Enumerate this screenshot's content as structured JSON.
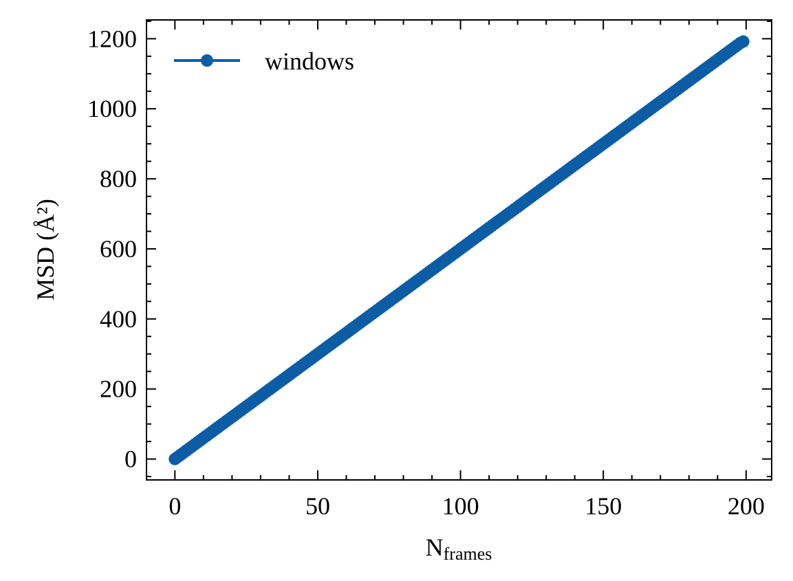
{
  "chart_data": {
    "type": "line",
    "xlabel": "N",
    "xlabel_sub": "frames",
    "ylabel": "MSD (Å²)",
    "x": [
      0,
      1,
      2,
      3,
      4,
      5,
      6,
      7,
      8,
      9,
      10,
      11,
      12,
      13,
      14,
      15,
      16,
      17,
      18,
      19,
      20,
      21,
      22,
      23,
      24,
      25,
      26,
      27,
      28,
      29,
      30,
      31,
      32,
      33,
      34,
      35,
      36,
      37,
      38,
      39,
      40,
      41,
      42,
      43,
      44,
      45,
      46,
      47,
      48,
      49,
      50,
      51,
      52,
      53,
      54,
      55,
      56,
      57,
      58,
      59,
      60,
      61,
      62,
      63,
      64,
      65,
      66,
      67,
      68,
      69,
      70,
      71,
      72,
      73,
      74,
      75,
      76,
      77,
      78,
      79,
      80,
      81,
      82,
      83,
      84,
      85,
      86,
      87,
      88,
      89,
      90,
      91,
      92,
      93,
      94,
      95,
      96,
      97,
      98,
      99,
      100,
      101,
      102,
      103,
      104,
      105,
      106,
      107,
      108,
      109,
      110,
      111,
      112,
      113,
      114,
      115,
      116,
      117,
      118,
      119,
      120,
      121,
      122,
      123,
      124,
      125,
      126,
      127,
      128,
      129,
      130,
      131,
      132,
      133,
      134,
      135,
      136,
      137,
      138,
      139,
      140,
      141,
      142,
      143,
      144,
      145,
      146,
      147,
      148,
      149,
      150,
      151,
      152,
      153,
      154,
      155,
      156,
      157,
      158,
      159,
      160,
      161,
      162,
      163,
      164,
      165,
      166,
      167,
      168,
      169,
      170,
      171,
      172,
      173,
      174,
      175,
      176,
      177,
      178,
      179,
      180,
      181,
      182,
      183,
      184,
      185,
      186,
      187,
      188,
      189,
      190,
      191,
      192,
      193,
      194,
      195,
      196,
      197,
      198,
      199
    ],
    "series": [
      {
        "name": "windows",
        "color": "#0C5DA5",
        "values": [
          0,
          6,
          12,
          18,
          24,
          30,
          36,
          42,
          48,
          54,
          60,
          66,
          72,
          78,
          84,
          90,
          96,
          102,
          108,
          114,
          120,
          126,
          132,
          138,
          144,
          150,
          156,
          162,
          168,
          174,
          180,
          186,
          192,
          198,
          204,
          210,
          216,
          222,
          228,
          234,
          240,
          246,
          252,
          258,
          264,
          270,
          276,
          282,
          288,
          294,
          300,
          306,
          312,
          318,
          324,
          330,
          336,
          342,
          348,
          354,
          360,
          366,
          372,
          378,
          384,
          390,
          396,
          402,
          408,
          414,
          420,
          426,
          432,
          438,
          444,
          450,
          456,
          462,
          468,
          474,
          480,
          486,
          492,
          498,
          504,
          510,
          516,
          522,
          528,
          534,
          540,
          546,
          552,
          558,
          564,
          570,
          576,
          582,
          588,
          594,
          600,
          606,
          612,
          618,
          624,
          630,
          636,
          642,
          648,
          654,
          660,
          666,
          672,
          678,
          684,
          690,
          696,
          702,
          708,
          714,
          720,
          726,
          732,
          738,
          744,
          750,
          756,
          762,
          768,
          774,
          780,
          786,
          792,
          798,
          804,
          810,
          816,
          822,
          828,
          834,
          840,
          846,
          852,
          858,
          864,
          870,
          876,
          882,
          888,
          894,
          900,
          906,
          912,
          918,
          924,
          930,
          936,
          942,
          948,
          954,
          960,
          966,
          972,
          978,
          984,
          990,
          996,
          1002,
          1008,
          1014,
          1020,
          1026,
          1032,
          1038,
          1044,
          1050,
          1056,
          1062,
          1068,
          1074,
          1080,
          1086,
          1092,
          1098,
          1104,
          1110,
          1116,
          1122,
          1128,
          1134,
          1140,
          1146,
          1152,
          1158,
          1164,
          1170,
          1176,
          1182,
          1188,
          1192
        ]
      }
    ],
    "xlim": [
      -9.95,
      208.95
    ],
    "xticks": [
      0,
      50,
      100,
      150,
      200
    ],
    "ylim": [
      -59.7,
      1253.7
    ],
    "yticks": [
      0,
      200,
      400,
      600,
      800,
      1000,
      1200
    ],
    "legend": "upper left"
  }
}
